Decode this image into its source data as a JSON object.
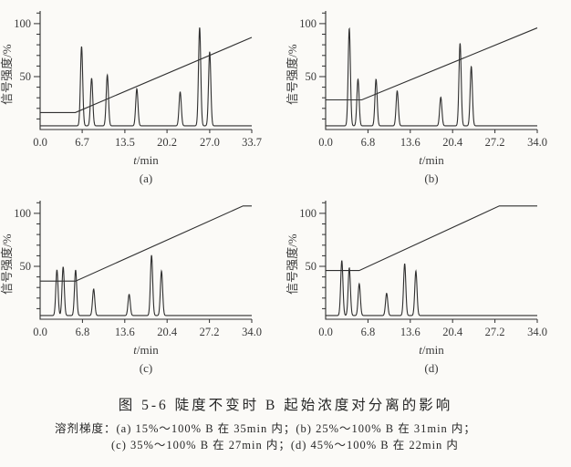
{
  "figure": {
    "caption": "图 5-6  陡度不变时 B 起始浓度对分离的影响",
    "solvent_note": {
      "prefix": "溶剂梯度：",
      "line1": "(a) 15%～100% B 在 35min 内；(b) 25%～100% B 在 31min 内；",
      "line2": "(c) 35%～100% B 在 27min 内；(d) 45%～100% B 在 22min 内"
    },
    "ink_color": "#2f2f2f",
    "paper_color": "#fbfaf7"
  },
  "chart_data": [
    {
      "type": "line",
      "panel": "(a)",
      "title": "",
      "xlabel": "t/min",
      "ylabel": "信号强度/%",
      "xlim": [
        0,
        33.7
      ],
      "ylim": [
        0,
        112
      ],
      "grid": false,
      "legend": "none",
      "x_ticks": [
        0.0,
        6.7,
        13.5,
        20.2,
        27.0,
        33.7
      ],
      "x_tick_labels": [
        "0.0",
        "6.7",
        "13.5",
        "20.2",
        "27.0",
        "33.7"
      ],
      "y_ticks_labeled": [
        {
          "v": 50,
          "label": "50"
        },
        {
          "v": 100,
          "label": "100"
        }
      ],
      "y_minor_step": 10,
      "series": [
        {
          "name": "chromatogram",
          "baseline": 3.5,
          "peak_sigma_min": 0.18,
          "peaks_t_height": [
            [
              6.6,
              75
            ],
            [
              8.2,
              45
            ],
            [
              10.7,
              48
            ],
            [
              15.4,
              35
            ],
            [
              22.3,
              32
            ],
            [
              25.4,
              93
            ],
            [
              27.0,
              70
            ]
          ]
        },
        {
          "name": "gradient-percent-B",
          "points": [
            [
              0,
              16
            ],
            [
              5.6,
              16
            ],
            [
              33.7,
              87
            ]
          ]
        }
      ]
    },
    {
      "type": "line",
      "panel": "(b)",
      "title": "",
      "xlabel": "t/min",
      "ylabel": "信号强度/%",
      "xlim": [
        0,
        34.0
      ],
      "ylim": [
        0,
        112
      ],
      "grid": false,
      "legend": "none",
      "x_ticks": [
        0.0,
        6.8,
        13.6,
        20.4,
        27.2,
        34.0
      ],
      "x_tick_labels": [
        "0.0",
        "6.8",
        "13.6",
        "20.4",
        "27.2",
        "34.0"
      ],
      "y_ticks_labeled": [
        {
          "v": 50,
          "label": "50"
        },
        {
          "v": 100,
          "label": "100"
        }
      ],
      "y_minor_step": 10,
      "series": [
        {
          "name": "chromatogram",
          "baseline": 3.5,
          "peak_sigma_min": 0.18,
          "peaks_t_height": [
            [
              3.8,
              92
            ],
            [
              5.2,
              44
            ],
            [
              8.1,
              44
            ],
            [
              11.5,
              33
            ],
            [
              18.5,
              27
            ],
            [
              21.6,
              78
            ],
            [
              23.4,
              56
            ]
          ]
        },
        {
          "name": "gradient-percent-B",
          "points": [
            [
              0,
              28
            ],
            [
              5.8,
              28
            ],
            [
              34.0,
              96
            ]
          ]
        }
      ]
    },
    {
      "type": "line",
      "panel": "(c)",
      "title": "",
      "xlabel": "t/min",
      "ylabel": "信号强度/%",
      "xlim": [
        0,
        34.0
      ],
      "ylim": [
        0,
        112
      ],
      "grid": false,
      "legend": "none",
      "x_ticks": [
        0.0,
        6.8,
        13.6,
        20.4,
        27.2,
        34.0
      ],
      "x_tick_labels": [
        "0.0",
        "6.8",
        "13.6",
        "20.4",
        "27.2",
        "34.0"
      ],
      "y_ticks_labeled": [
        {
          "v": 50,
          "label": "50"
        },
        {
          "v": 100,
          "label": "100"
        }
      ],
      "y_minor_step": 10,
      "series": [
        {
          "name": "chromatogram",
          "baseline": 3.5,
          "peak_sigma_min": 0.18,
          "peaks_t_height": [
            [
              2.7,
              43
            ],
            [
              3.7,
              46
            ],
            [
              5.7,
              43
            ],
            [
              8.6,
              25
            ],
            [
              14.3,
              20
            ],
            [
              17.9,
              57
            ],
            [
              19.5,
              42
            ]
          ]
        },
        {
          "name": "gradient-percent-B",
          "points": [
            [
              0,
              36
            ],
            [
              5.7,
              36
            ],
            [
              32.6,
              107
            ],
            [
              34.0,
              107
            ]
          ]
        }
      ]
    },
    {
      "type": "line",
      "panel": "(d)",
      "title": "",
      "xlabel": "t/min",
      "ylabel": "信号强度/%",
      "xlim": [
        0,
        34.0
      ],
      "ylim": [
        0,
        112
      ],
      "grid": false,
      "legend": "none",
      "x_ticks": [
        0.0,
        6.8,
        13.6,
        20.4,
        27.2,
        34.0
      ],
      "x_tick_labels": [
        "0.0",
        "6.8",
        "13.6",
        "20.4",
        "27.2",
        "34.0"
      ],
      "y_ticks_labeled": [
        {
          "v": 50,
          "label": "50"
        },
        {
          "v": 100,
          "label": "100"
        }
      ],
      "y_minor_step": 10,
      "series": [
        {
          "name": "chromatogram",
          "baseline": 3.5,
          "peak_sigma_min": 0.18,
          "peaks_t_height": [
            [
              2.6,
              52
            ],
            [
              3.8,
              45
            ],
            [
              5.4,
              30
            ],
            [
              9.8,
              21
            ],
            [
              12.7,
              49
            ],
            [
              14.5,
              42
            ]
          ]
        },
        {
          "name": "gradient-percent-B",
          "points": [
            [
              0,
              46
            ],
            [
              5.4,
              46
            ],
            [
              27.9,
              107
            ],
            [
              34.0,
              107
            ]
          ]
        }
      ]
    }
  ]
}
